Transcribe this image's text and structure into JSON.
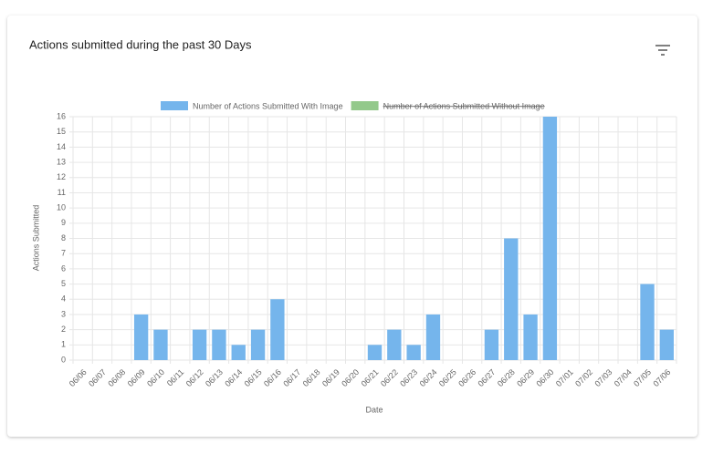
{
  "header": {
    "title": "Actions submitted during the past 30 Days"
  },
  "chart_data": {
    "type": "bar",
    "categories": [
      "06/06",
      "06/07",
      "06/08",
      "06/09",
      "06/10",
      "06/11",
      "06/12",
      "06/13",
      "06/14",
      "06/15",
      "06/16",
      "06/17",
      "06/18",
      "06/19",
      "06/20",
      "06/21",
      "06/22",
      "06/23",
      "06/24",
      "06/25",
      "06/26",
      "06/27",
      "06/28",
      "06/29",
      "06/30",
      "07/01",
      "07/02",
      "07/03",
      "07/04",
      "07/05",
      "07/06"
    ],
    "series": [
      {
        "name": "Number of Actions Submitted With Image",
        "color": "#75b5ec",
        "hidden": false,
        "values": [
          0,
          0,
          0,
          3,
          2,
          0,
          2,
          2,
          1,
          2,
          4,
          0,
          0,
          0,
          0,
          1,
          2,
          1,
          3,
          0,
          0,
          2,
          8,
          3,
          16,
          0,
          0,
          0,
          0,
          5,
          2
        ]
      },
      {
        "name": "Number of Actions Submitted Without Image",
        "color": "#93c98b",
        "hidden": true,
        "values": [
          null,
          null,
          null,
          null,
          null,
          null,
          null,
          null,
          null,
          null,
          null,
          null,
          null,
          null,
          null,
          null,
          null,
          null,
          null,
          null,
          null,
          null,
          null,
          null,
          null,
          null,
          null,
          null,
          null,
          null,
          null
        ]
      }
    ],
    "xlabel": "Date",
    "ylabel": "Actions Submitted",
    "ylim": [
      0,
      16
    ],
    "yticks": [
      0,
      1,
      2,
      3,
      4,
      5,
      6,
      7,
      8,
      9,
      10,
      11,
      12,
      13,
      14,
      15,
      16
    ],
    "grid": true,
    "legend": "top"
  }
}
